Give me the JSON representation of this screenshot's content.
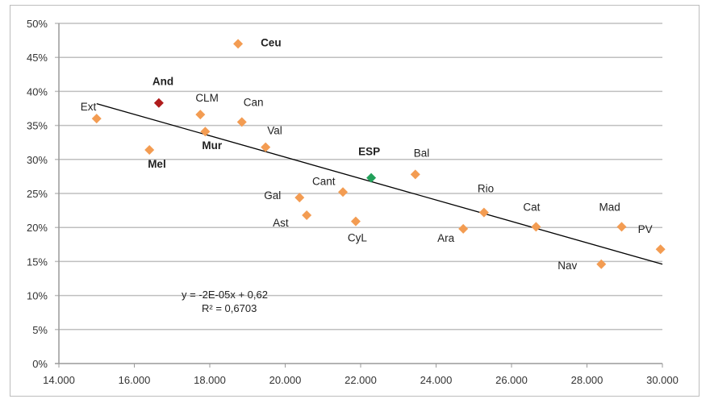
{
  "chart_data": {
    "type": "scatter",
    "title": "",
    "xlabel": "",
    "ylabel": "",
    "xlim": [
      14000,
      30000
    ],
    "ylim": [
      0,
      50
    ],
    "x_ticks": [
      "14.000",
      "16.000",
      "18.000",
      "20.000",
      "22.000",
      "24.000",
      "26.000",
      "28.000",
      "30.000"
    ],
    "x_tick_values": [
      14000,
      16000,
      18000,
      20000,
      22000,
      24000,
      26000,
      28000,
      30000
    ],
    "y_ticks": [
      "0%",
      "5%",
      "10%",
      "15%",
      "20%",
      "25%",
      "30%",
      "35%",
      "40%",
      "45%",
      "50%"
    ],
    "y_tick_values": [
      0,
      5,
      10,
      15,
      20,
      25,
      30,
      35,
      40,
      45,
      50
    ],
    "grid": "horizontal",
    "colors": {
      "default": "#f39c52",
      "highlight_and": "#b01c1c",
      "highlight_esp": "#22a05a",
      "trend": "#000000",
      "grid": "#bfbfbf"
    },
    "points": [
      {
        "label": "Ext",
        "x": 15000,
        "y": 36.0,
        "color": "default",
        "bold": false
      },
      {
        "label": "Mel",
        "x": 16400,
        "y": 31.4,
        "color": "default",
        "bold": true
      },
      {
        "label": "And",
        "x": 16650,
        "y": 38.3,
        "color": "highlight_and",
        "bold": true
      },
      {
        "label": "CLM",
        "x": 17750,
        "y": 36.6,
        "color": "default",
        "bold": false
      },
      {
        "label": "Mur",
        "x": 17880,
        "y": 34.1,
        "color": "default",
        "bold": true
      },
      {
        "label": "Ceu",
        "x": 18750,
        "y": 47.0,
        "color": "default",
        "bold": true
      },
      {
        "label": "Can",
        "x": 18850,
        "y": 35.5,
        "color": "default",
        "bold": false
      },
      {
        "label": "Val",
        "x": 19480,
        "y": 31.8,
        "color": "default",
        "bold": false
      },
      {
        "label": "Gal",
        "x": 20380,
        "y": 24.4,
        "color": "default",
        "bold": false
      },
      {
        "label": "Ast",
        "x": 20570,
        "y": 21.8,
        "color": "default",
        "bold": false
      },
      {
        "label": "Cant",
        "x": 21530,
        "y": 25.2,
        "color": "default",
        "bold": false
      },
      {
        "label": "CyL",
        "x": 21870,
        "y": 20.9,
        "color": "default",
        "bold": false
      },
      {
        "label": "ESP",
        "x": 22280,
        "y": 27.3,
        "color": "highlight_esp",
        "bold": true
      },
      {
        "label": "Bal",
        "x": 23450,
        "y": 27.8,
        "color": "default",
        "bold": false
      },
      {
        "label": "Ara",
        "x": 24720,
        "y": 19.8,
        "color": "default",
        "bold": false
      },
      {
        "label": "Rio",
        "x": 25270,
        "y": 22.2,
        "color": "default",
        "bold": false
      },
      {
        "label": "Cat",
        "x": 26650,
        "y": 20.1,
        "color": "default",
        "bold": false
      },
      {
        "label": "Nav",
        "x": 28380,
        "y": 14.6,
        "color": "default",
        "bold": false
      },
      {
        "label": "Mad",
        "x": 28920,
        "y": 20.1,
        "color": "default",
        "bold": false
      },
      {
        "label": "PV",
        "x": 29950,
        "y": 16.8,
        "color": "default",
        "bold": false
      }
    ],
    "trendline": {
      "x": [
        15000,
        30000
      ],
      "y": [
        38.2,
        14.6
      ]
    },
    "annotations": {
      "equation": "y = -2E-05x + 0,62",
      "r_squared": "R² = 0,6703"
    }
  }
}
